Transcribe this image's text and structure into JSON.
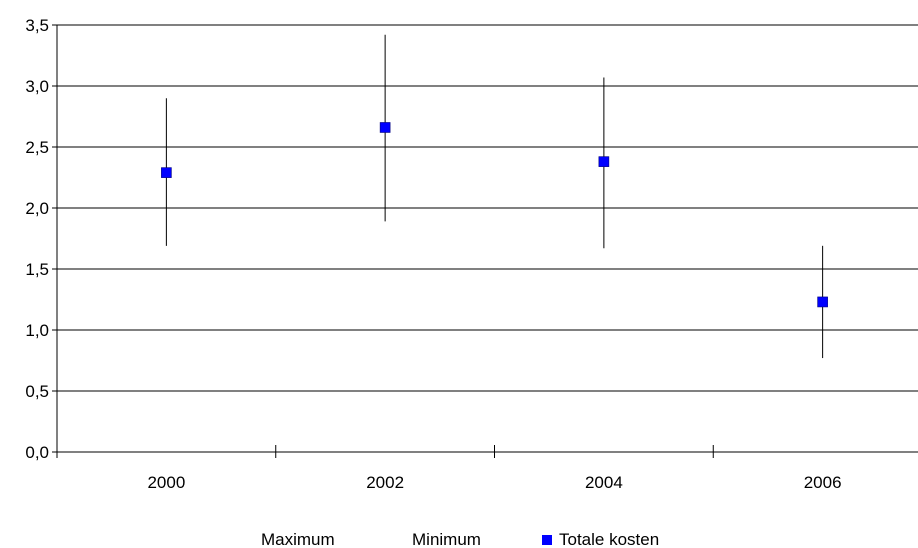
{
  "chart_data": {
    "type": "scatter",
    "title": "",
    "xlabel": "",
    "ylabel": "",
    "categories": [
      "2000",
      "2002",
      "2004",
      "2006"
    ],
    "series": [
      {
        "name": "Maximum",
        "values": [
          2.9,
          3.42,
          3.07,
          1.69
        ]
      },
      {
        "name": "Minimum",
        "values": [
          1.69,
          1.89,
          1.67,
          0.77
        ]
      },
      {
        "name": "Totale kosten",
        "values": [
          2.29,
          2.66,
          2.38,
          1.23
        ]
      }
    ],
    "ylim": [
      0,
      3.5
    ],
    "yticks": [
      "0,0",
      "0,5",
      "1,0",
      "1,5",
      "2,0",
      "2,5",
      "3,0",
      "3,5"
    ],
    "grid": true,
    "legend_position": "bottom",
    "colors": {
      "marker": "#0000ff",
      "lines": "#000000"
    }
  }
}
